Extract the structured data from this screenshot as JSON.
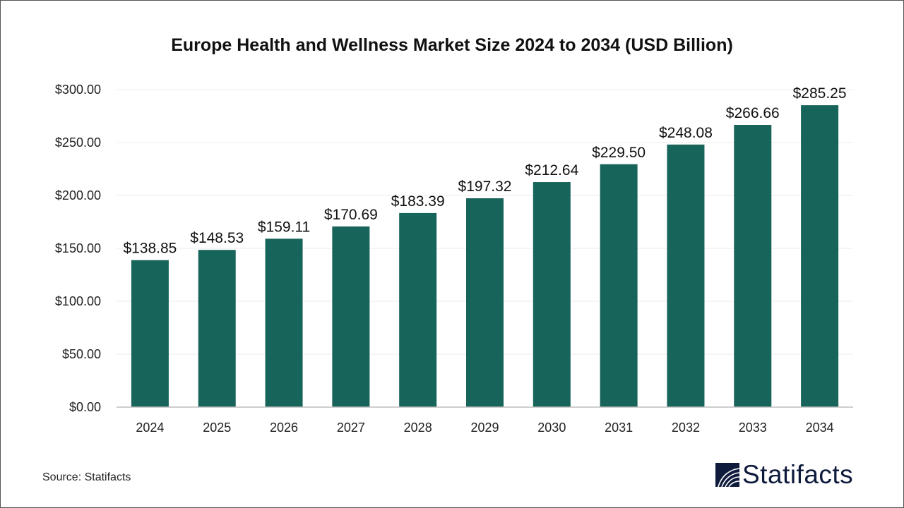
{
  "chart_data": {
    "type": "bar",
    "title": "Europe Health and Wellness Market Size 2024 to 2034 (USD Billion)",
    "categories": [
      "2024",
      "2025",
      "2026",
      "2027",
      "2028",
      "2029",
      "2030",
      "2031",
      "2032",
      "2033",
      "2034"
    ],
    "values": [
      138.85,
      148.53,
      159.11,
      170.69,
      183.39,
      197.32,
      212.64,
      229.5,
      248.08,
      266.66,
      285.25
    ],
    "data_labels": [
      "$138.85",
      "$148.53",
      "$159.11",
      "$170.69",
      "$183.39",
      "$197.32",
      "$212.64",
      "$229.50",
      "$248.08",
      "$266.66",
      "$285.25"
    ],
    "yticks": [
      0,
      50,
      100,
      150,
      200,
      250,
      300
    ],
    "ytick_labels": [
      "$0.00",
      "$50.00",
      "$100.00",
      "$150.00",
      "$200.00",
      "$250.00",
      "$300.00"
    ],
    "ylim": [
      0,
      300
    ],
    "xlabel": "",
    "ylabel": "",
    "grid": true,
    "bar_color": "#17645a"
  },
  "source": "Source: Statifacts",
  "logo_text": "Statifacts"
}
